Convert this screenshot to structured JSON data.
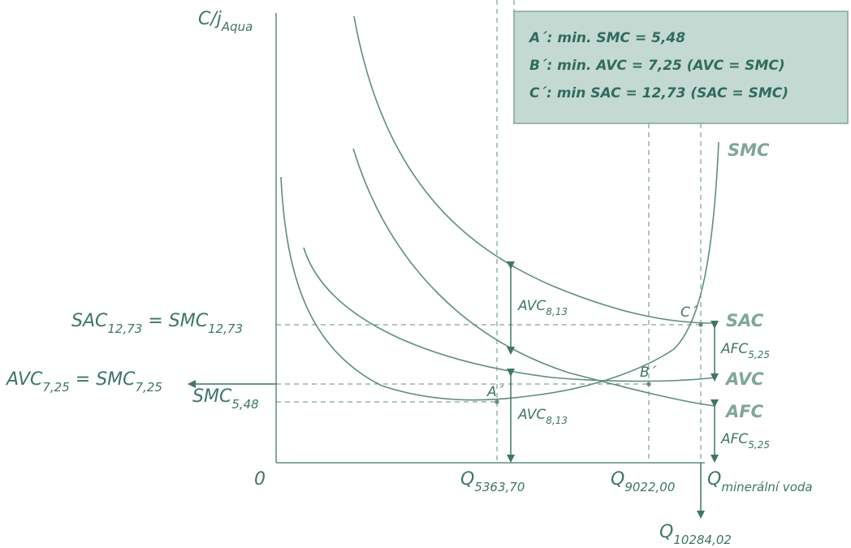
{
  "colors": {
    "curve": "#5f8d80",
    "text": "#3f7568",
    "box_fill": "#c5d9d3",
    "box_border": "#7fa69b",
    "curve_label": "#7fa69b"
  },
  "legend_box": {
    "line_a": "A´: min. SMC = 5,48",
    "line_b": "B´: min. AVC = 7,25  (AVC = SMC)",
    "line_c": "C´: min SAC = 12,73 (SAC = SMC)"
  },
  "labels": {
    "y_axis": "C/j",
    "y_axis_sub": "Aqua",
    "origin": "0",
    "x_axis": "Q",
    "x_axis_sub": "minerální voda",
    "q1": "Q",
    "q1_sub": "5363,70",
    "q2": "Q",
    "q2_sub": "9022,00",
    "q3": "Q",
    "q3_sub": "10284,02",
    "sac_left": "SAC",
    "sac_left_sub": "12,73",
    "sac_eq": " = SMC",
    "sac_eq_sub": "12,73",
    "avc_left": "AVC",
    "avc_left_sub": "7,25",
    "avc_eq": " = SMC",
    "avc_eq_sub": "7,25",
    "smc_left": "SMC",
    "smc_left_sub": "5,48",
    "point_a": "A´",
    "point_b": "B´",
    "point_c": "C´",
    "avc_upper": "AVC",
    "avc_upper_sub": "8,13",
    "avc_lower": "AVC",
    "avc_lower_sub": "8,13",
    "afc_upper": "AFC",
    "afc_upper_sub": "5,25",
    "afc_lower": "AFC",
    "afc_lower_sub": "5,25",
    "curve_smc": "SMC",
    "curve_sac": "SAC",
    "curve_avc": "AVC",
    "curve_afc": "AFC"
  },
  "chart_data": {
    "type": "line",
    "title": "",
    "xlabel": "Q minerální voda",
    "ylabel": "C/j Aqua",
    "marked_x": [
      5363.7,
      9022.0,
      10284.02
    ],
    "marked_y": {
      "SAC_min": 12.73,
      "AVC_min": 7.25,
      "SMC_min": 5.48
    },
    "points": [
      {
        "name": "A´",
        "x": 5363.7,
        "y": 5.48,
        "note": "min. SMC"
      },
      {
        "name": "B´",
        "x": 9022.0,
        "y": 7.25,
        "note": "min. AVC"
      },
      {
        "name": "C´",
        "x": 10284.02,
        "y": 12.73,
        "note": "min SAC"
      }
    ],
    "annotations": {
      "AVC_at_Q5363_70": 8.13,
      "AFC_at_Q10284_02": 5.25
    },
    "series": [
      {
        "name": "SMC"
      },
      {
        "name": "SAC"
      },
      {
        "name": "AVC"
      },
      {
        "name": "AFC"
      }
    ]
  }
}
